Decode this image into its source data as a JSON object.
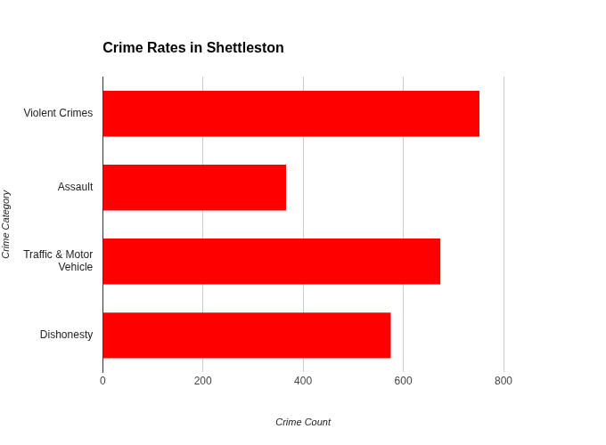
{
  "chart_data": {
    "type": "bar",
    "orientation": "horizontal",
    "title": "Crime Rates in Shettleston",
    "x_label": "Crime Count",
    "y_label": "Crime Category",
    "categories": [
      "Violent Crimes",
      "Assault",
      "Traffic & Motor Vehicle",
      "Dishonesty"
    ],
    "values": [
      752,
      366,
      674,
      575
    ],
    "color": "#ff0000",
    "xlim": [
      0,
      800
    ],
    "xticks": [
      0,
      200,
      400,
      600,
      800
    ],
    "grid": true
  }
}
